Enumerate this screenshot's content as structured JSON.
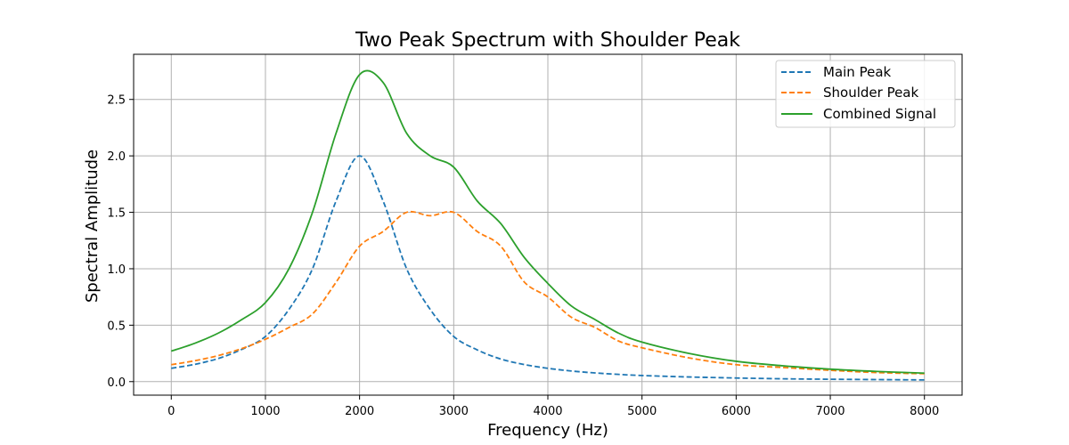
{
  "chart_data": {
    "type": "line",
    "title": "Two Peak Spectrum with Shoulder Peak",
    "xlabel": "Frequency (Hz)",
    "ylabel": "Spectral Amplitude",
    "xlim": [
      -400,
      8400
    ],
    "ylim": [
      -0.12,
      2.9
    ],
    "xticks": [
      0,
      1000,
      2000,
      3000,
      4000,
      5000,
      6000,
      7000,
      8000
    ],
    "xtick_labels": [
      "0",
      "1000",
      "2000",
      "3000",
      "4000",
      "5000",
      "6000",
      "7000",
      "8000"
    ],
    "yticks": [
      0.0,
      0.5,
      1.0,
      1.5,
      2.0,
      2.5
    ],
    "ytick_labels": [
      "0.0",
      "0.5",
      "1.0",
      "1.5",
      "2.0",
      "2.5"
    ],
    "grid": true,
    "legend_position": "top-right",
    "x": [
      0,
      250,
      500,
      750,
      1000,
      1250,
      1500,
      1750,
      2000,
      2250,
      2500,
      2750,
      3000,
      3250,
      3500,
      3750,
      4000,
      4250,
      4500,
      4750,
      5000,
      5500,
      6000,
      6500,
      7000,
      7500,
      8000
    ],
    "series": [
      {
        "name": "Main Peak",
        "color": "#1f77b4",
        "style": "dashed",
        "values": [
          0.118,
          0.153,
          0.205,
          0.286,
          0.4,
          0.64,
          1.0,
          1.6,
          2.0,
          1.6,
          1.0,
          0.64,
          0.4,
          0.281,
          0.2,
          0.151,
          0.118,
          0.094,
          0.077,
          0.064,
          0.054,
          0.041,
          0.032,
          0.025,
          0.021,
          0.018,
          0.015
        ]
      },
      {
        "name": "Shoulder Peak",
        "color": "#ff7f0e",
        "style": "dashed",
        "values": [
          0.15,
          0.185,
          0.231,
          0.293,
          0.375,
          0.48,
          0.6,
          0.88,
          1.2,
          1.33,
          1.5,
          1.47,
          1.5,
          1.33,
          1.2,
          0.882,
          0.75,
          0.57,
          0.48,
          0.36,
          0.3,
          0.21,
          0.15,
          0.125,
          0.1,
          0.08,
          0.07
        ]
      },
      {
        "name": "Combined Signal",
        "color": "#2ca02c",
        "style": "solid",
        "values": [
          0.27,
          0.34,
          0.43,
          0.55,
          0.7,
          1.0,
          1.5,
          2.2,
          2.72,
          2.65,
          2.2,
          2.0,
          1.9,
          1.6,
          1.4,
          1.1,
          0.87,
          0.67,
          0.55,
          0.43,
          0.35,
          0.25,
          0.18,
          0.14,
          0.11,
          0.09,
          0.075
        ]
      }
    ]
  }
}
